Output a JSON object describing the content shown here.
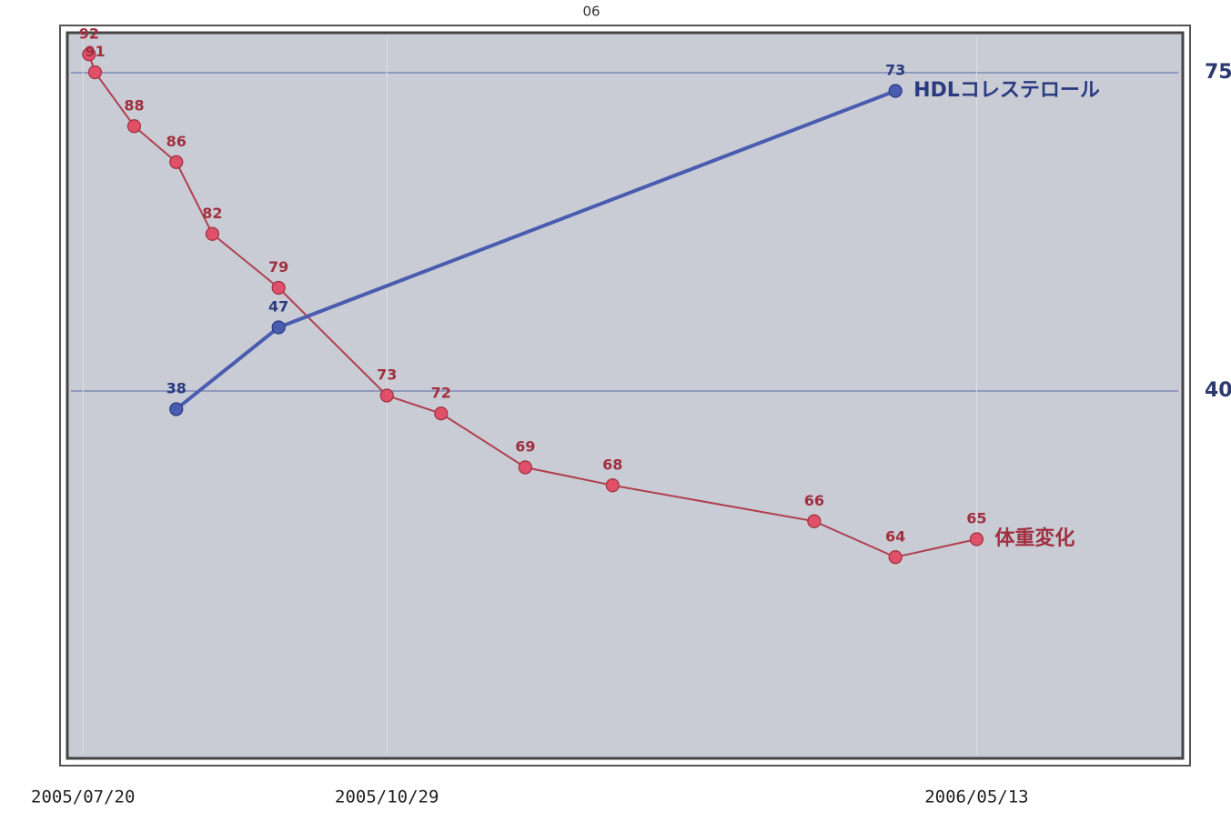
{
  "chart_data": {
    "type": "line",
    "annotations": [
      "06"
    ],
    "xlim": [
      "2005-07-16",
      "2006-07-19"
    ],
    "xticks": [
      "2005-07-20",
      "2005-10-29",
      "2006-05-13"
    ],
    "xtick_labels": [
      "2005/07/20",
      "2005/10/29",
      "2006/05/13"
    ],
    "ylim": [
      53,
      93
    ],
    "y2lim": [
      0,
      79
    ],
    "y2ticks": [
      40,
      75
    ],
    "grid": true,
    "series": [
      {
        "name": "体重変化",
        "color": "#e05068",
        "x": [
          "2005-07-22",
          "2005-07-24",
          "2005-08-06",
          "2005-08-20",
          "2005-09-01",
          "2005-09-23",
          "2005-10-29",
          "2005-11-16",
          "2005-12-14",
          "2006-01-12",
          "2006-03-20",
          "2006-04-16",
          "2006-05-13"
        ],
        "values": [
          92,
          91,
          88,
          86,
          82,
          79,
          73,
          72,
          69,
          68,
          66,
          64,
          65
        ]
      },
      {
        "name": "HDLコレステロール",
        "color": "#4a5cb0",
        "axis": "y2",
        "x": [
          "2005-08-20",
          "2005-09-23",
          "2006-04-16"
        ],
        "values": [
          38,
          47,
          73
        ]
      }
    ]
  }
}
